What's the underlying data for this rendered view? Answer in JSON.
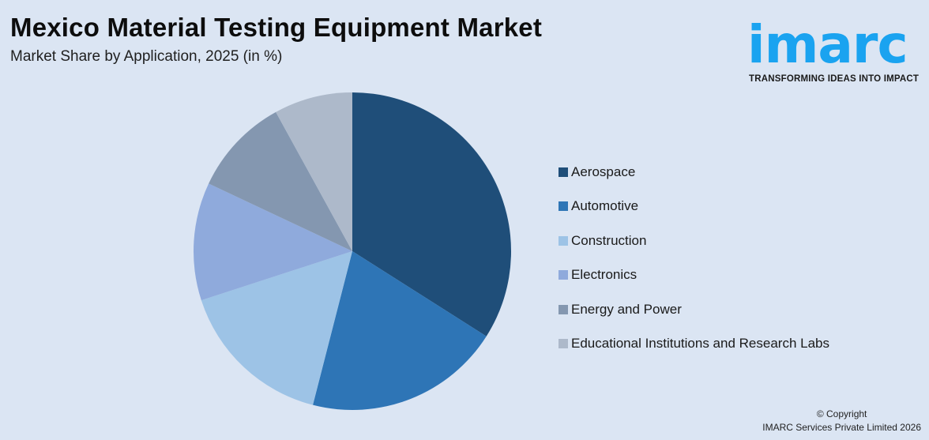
{
  "header": {
    "title": "Mexico Material Testing Equipment Market",
    "subtitle": "Market Share by Application, 2025 (in %)"
  },
  "logo": {
    "wordmark": "imarc",
    "tagline": "TRANSFORMING IDEAS INTO IMPACT",
    "color": "#1aa3f0"
  },
  "footer": {
    "copyright_line1": "© Copyright",
    "copyright_line2": "IMARC Services Private Limited 2026"
  },
  "chart_data": {
    "type": "pie",
    "title": "Mexico Material Testing Equipment Market",
    "subtitle": "Market Share by Application, 2025 (in %)",
    "categories": [
      "Aerospace",
      "Automotive",
      "Construction",
      "Electronics",
      "Energy and Power",
      "Educational Institutions and Research Labs"
    ],
    "values": [
      34,
      20,
      16,
      12,
      10,
      8
    ],
    "colors": [
      "#1f4e79",
      "#2e75b6",
      "#9dc3e6",
      "#8faadc",
      "#8497b0",
      "#adb9ca"
    ],
    "start_angle_deg": 0,
    "direction": "clockwise",
    "legend_position": "right",
    "data_labels": false
  }
}
